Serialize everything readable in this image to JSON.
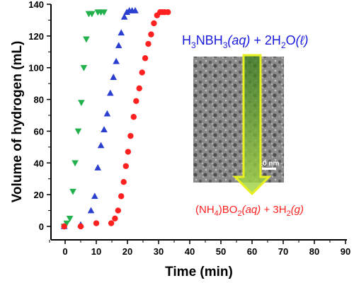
{
  "chart_data": {
    "type": "scatter",
    "xlabel": "Time (min)",
    "ylabel": "Volume of hydrogen (mL)",
    "xlim": [
      -5,
      90
    ],
    "ylim": [
      -10,
      140
    ],
    "xticks": [
      0,
      10,
      20,
      30,
      40,
      50,
      60,
      70,
      80,
      90
    ],
    "yticks": [
      0,
      20,
      40,
      60,
      80,
      100,
      120,
      140
    ],
    "grid": false,
    "series": [
      {
        "marker": "triangle-down",
        "color": "#22b14c",
        "x": [
          -0.3,
          0.5,
          1.5,
          2.5,
          3.2,
          4.2,
          5.2,
          6.0,
          6.8,
          7.6,
          8.6,
          10.5,
          11.5,
          12.5
        ],
        "y": [
          0,
          2,
          5,
          22,
          40,
          60,
          78,
          100,
          118,
          134,
          134,
          135,
          135,
          135
        ]
      },
      {
        "marker": "triangle-up",
        "color": "#2a3fd0",
        "x": [
          -0.3,
          5.0,
          8.3,
          9.5,
          10.5,
          11.5,
          12.5,
          13.5,
          14.5,
          15.5,
          16.4,
          17.2,
          18.0,
          19.0,
          19.8,
          20.6,
          21.5,
          22.5
        ],
        "y": [
          0,
          1,
          10,
          19,
          37,
          51,
          61,
          71,
          84,
          94,
          104,
          114,
          122,
          132,
          135,
          136,
          136,
          136
        ]
      },
      {
        "marker": "circle",
        "color": "#ff2020",
        "x": [
          -0.3,
          5.0,
          10.0,
          14.8,
          16.0,
          17.0,
          18.0,
          18.8,
          19.5,
          20.2,
          21.0,
          22.0,
          22.8,
          23.8,
          24.7,
          25.7,
          26.7,
          27.6,
          28.5,
          29.5,
          30.5,
          31.2,
          32.0,
          33.0
        ],
        "y": [
          0,
          0,
          2,
          2,
          5,
          10,
          19,
          28,
          38,
          47,
          57,
          69,
          79,
          87,
          97,
          106,
          115,
          121,
          128,
          133,
          135,
          135,
          135,
          135
        ]
      }
    ]
  },
  "inset": {
    "equation_top_prefix": "H",
    "equation_top_sub1": "3",
    "equation_top_mid": "NBH",
    "equation_top_sub2": "3",
    "equation_top_aq": "(aq)",
    "equation_top_plus": " + 2H",
    "equation_top_sub3": "2",
    "equation_top_o": "O",
    "equation_top_l": "(ℓ)",
    "equation_bottom_p1": "(NH",
    "equation_bottom_sub1": "4",
    "equation_bottom_p2": ")BO",
    "equation_bottom_sub2": "2",
    "equation_bottom_aq": "(aq)",
    "equation_bottom_p3": " + 3H",
    "equation_bottom_sub3": "2",
    "equation_bottom_g": "(g)",
    "scale_bar_label": "10 nm",
    "top_color": "#1a1adc",
    "bottom_color": "#ff2020"
  }
}
